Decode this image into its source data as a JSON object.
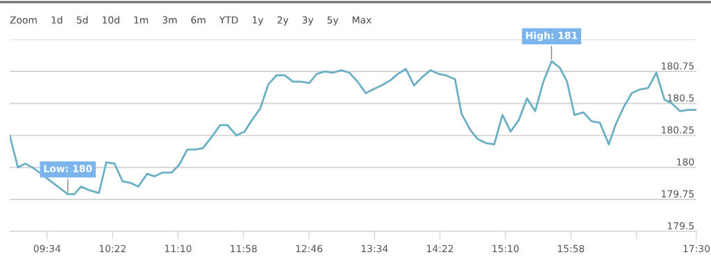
{
  "chart_data": {
    "type": "line",
    "x": [
      9.11,
      9.21,
      9.3,
      9.41,
      9.82,
      9.9,
      9.98,
      10.09,
      10.2,
      10.29,
      10.39,
      10.49,
      10.58,
      10.68,
      10.79,
      10.88,
      10.98,
      11.09,
      11.18,
      11.28,
      11.38,
      11.47,
      11.58,
      11.68,
      11.77,
      11.88,
      11.98,
      12.07,
      12.17,
      12.27,
      12.37,
      12.47,
      12.57,
      12.67,
      12.77,
      12.86,
      12.96,
      13.06,
      13.16,
      13.26,
      13.36,
      13.46,
      13.55,
      13.65,
      13.76,
      13.85,
      13.95,
      14.05,
      14.14,
      14.25,
      14.35,
      14.44,
      14.55,
      14.63,
      14.74,
      14.83,
      14.93,
      15.03,
      15.13,
      15.23,
      15.33,
      15.43,
      15.53,
      15.63,
      15.73,
      15.83,
      15.92,
      16.01,
      16.12,
      16.22,
      16.32,
      16.43,
      16.51,
      16.61,
      16.71,
      16.81,
      16.91,
      17.01,
      17.11,
      17.2,
      17.3,
      17.4,
      17.5
    ],
    "series": [
      {
        "color": "#6ab0c4",
        "values": [
          180.25,
          180.0,
          180.03,
          179.99,
          179.79,
          179.79,
          179.85,
          179.82,
          179.8,
          180.04,
          180.03,
          179.89,
          179.88,
          179.85,
          179.95,
          179.93,
          179.96,
          179.96,
          180.02,
          180.14,
          180.14,
          180.15,
          180.24,
          180.33,
          180.33,
          180.25,
          180.28,
          180.37,
          180.46,
          180.65,
          180.72,
          180.72,
          180.67,
          180.67,
          180.66,
          180.73,
          180.75,
          180.74,
          180.76,
          180.74,
          180.67,
          180.58,
          180.61,
          180.64,
          180.68,
          180.73,
          180.77,
          180.64,
          180.7,
          180.76,
          180.73,
          180.72,
          180.69,
          180.42,
          180.29,
          180.22,
          180.19,
          180.18,
          180.41,
          180.28,
          180.37,
          180.54,
          180.44,
          180.67,
          180.83,
          180.78,
          180.67,
          180.41,
          180.43,
          180.36,
          180.35,
          180.18,
          180.33,
          180.47,
          180.58,
          180.61,
          180.62,
          180.74,
          180.53,
          180.5,
          180.44,
          180.45,
          180.45
        ]
      }
    ],
    "xlim": [
      9.11,
      17.5
    ],
    "xticks": [
      {
        "value": 9.5667,
        "label": "09:34"
      },
      {
        "value": 10.3667,
        "label": "10:22"
      },
      {
        "value": 11.1667,
        "label": "11:10"
      },
      {
        "value": 11.9667,
        "label": "11:58"
      },
      {
        "value": 12.7667,
        "label": "12:46"
      },
      {
        "value": 13.5667,
        "label": "13:34"
      },
      {
        "value": 14.3667,
        "label": "14:22"
      },
      {
        "value": 15.1667,
        "label": "15:10"
      },
      {
        "value": 15.9667,
        "label": "15:58"
      },
      {
        "value": 16.7667,
        "label": null
      },
      {
        "value": 17.5,
        "label": "17:30"
      }
    ],
    "ylim": [
      179.5,
      181
    ],
    "yticks": [
      179.5,
      179.75,
      180,
      180.25,
      180.5,
      180.75,
      {
        "value": 181,
        "label": null
      }
    ],
    "grid": "y",
    "marker": "none",
    "line_style": "solid",
    "legend": false,
    "annotations": [
      "Zoom",
      "1d",
      "5d",
      "10d",
      "1m",
      "3m",
      "6m",
      "YTD",
      "1y",
      "2y",
      "3y",
      "5y",
      "Max",
      {
        "text": "Low: 180",
        "x": 9.82,
        "y": 179.79
      },
      {
        "text": "High: 181",
        "x": 15.73,
        "y": 180.83
      }
    ]
  }
}
